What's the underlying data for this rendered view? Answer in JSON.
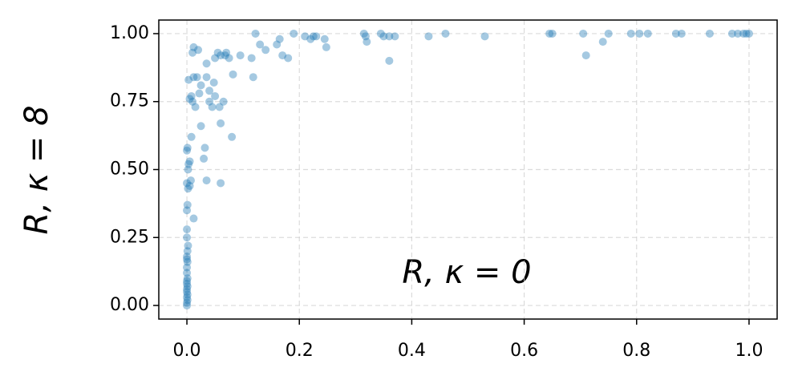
{
  "chart_data": {
    "type": "scatter",
    "xlabel": "R, κ = 0",
    "ylabel": "R, κ = 8",
    "color": "#1f77b4",
    "grid": true,
    "xlim": [
      -0.05,
      1.05
    ],
    "ylim": [
      -0.05,
      1.05
    ],
    "xticks": [
      {
        "value": 0,
        "label": "0.0"
      },
      {
        "value": 0.2,
        "label": "0.2"
      },
      {
        "value": 0.4,
        "label": "0.4"
      },
      {
        "value": 0.6,
        "label": "0.6"
      },
      {
        "value": 0.8,
        "label": "0.8"
      },
      {
        "value": 1,
        "label": "1.0"
      }
    ],
    "yticks": [
      {
        "value": 0,
        "label": "0.00"
      },
      {
        "value": 0.25,
        "label": "0.25"
      },
      {
        "value": 0.5,
        "label": "0.50"
      },
      {
        "value": 0.75,
        "label": "0.75"
      },
      {
        "value": 1,
        "label": "1.00"
      }
    ],
    "x": [
      0,
      0,
      0.001,
      0,
      0.001,
      0,
      0,
      0.001,
      0,
      0,
      0.001,
      0,
      0,
      0.001,
      0,
      0,
      0.001,
      0.002,
      0,
      0,
      0,
      0.001,
      0.002,
      0,
      0.002,
      0.003,
      0,
      0.001,
      0.003,
      0.005,
      0.007,
      0.005,
      0.008,
      0.012,
      0.005,
      0.008,
      0.01,
      0.012,
      0.018,
      0.015,
      0.01,
      0.012,
      0.02,
      0.022,
      0.025,
      0.025,
      0.03,
      0.032,
      0.035,
      0.035,
      0.035,
      0.04,
      0.04,
      0.045,
      0.048,
      0.05,
      0.05,
      0.055,
      0.06,
      0.058,
      0.06,
      0.06,
      0.065,
      0.068,
      0.07,
      0.075,
      0.08,
      0.082,
      0.095,
      0.115,
      0.118,
      0.122,
      0.13,
      0.14,
      0.16,
      0.165,
      0.17,
      0.18,
      0.19,
      0.21,
      0.22,
      0.225,
      0.23,
      0.245,
      0.248,
      0.315,
      0.318,
      0.32,
      0.345,
      0.35,
      0.36,
      0.36,
      0.37,
      0.43,
      0.46,
      0.53,
      0.645,
      0.65,
      0.705,
      0.71,
      0.74,
      0.75,
      0.79,
      0.805,
      0.82,
      0.87,
      0.88,
      0.93,
      0.97,
      0.98,
      0.99,
      0.995,
      1.0
    ],
    "values": [
      0,
      0.01,
      0.02,
      0.03,
      0.04,
      0.05,
      0.06,
      0.07,
      0.08,
      0.09,
      0.1,
      0.12,
      0.14,
      0.16,
      0.17,
      0.18,
      0.2,
      0.22,
      0.25,
      0.28,
      0.35,
      0.37,
      0.43,
      0.45,
      0.5,
      0.52,
      0.57,
      0.58,
      0.83,
      0.44,
      0.46,
      0.53,
      0.62,
      0.32,
      0.76,
      0.77,
      0.75,
      0.84,
      0.84,
      0.73,
      0.93,
      0.95,
      0.94,
      0.78,
      0.81,
      0.66,
      0.54,
      0.58,
      0.46,
      0.89,
      0.84,
      0.75,
      0.79,
      0.73,
      0.82,
      0.77,
      0.91,
      0.93,
      0.92,
      0.73,
      0.67,
      0.45,
      0.75,
      0.92,
      0.93,
      0.91,
      0.62,
      0.85,
      0.92,
      0.91,
      0.84,
      1.0,
      0.96,
      0.94,
      0.96,
      0.98,
      0.92,
      0.91,
      1.0,
      0.99,
      0.98,
      0.99,
      0.99,
      0.98,
      0.95,
      1.0,
      0.99,
      0.97,
      1.0,
      0.99,
      0.9,
      0.99,
      0.99,
      0.99,
      1.0,
      0.99,
      1.0,
      1.0,
      1.0,
      0.92,
      0.97,
      1.0,
      1.0,
      1.0,
      1.0,
      1.0,
      1.0,
      1.0,
      1.0,
      1.0,
      1.0,
      1.0,
      1.0
    ]
  }
}
